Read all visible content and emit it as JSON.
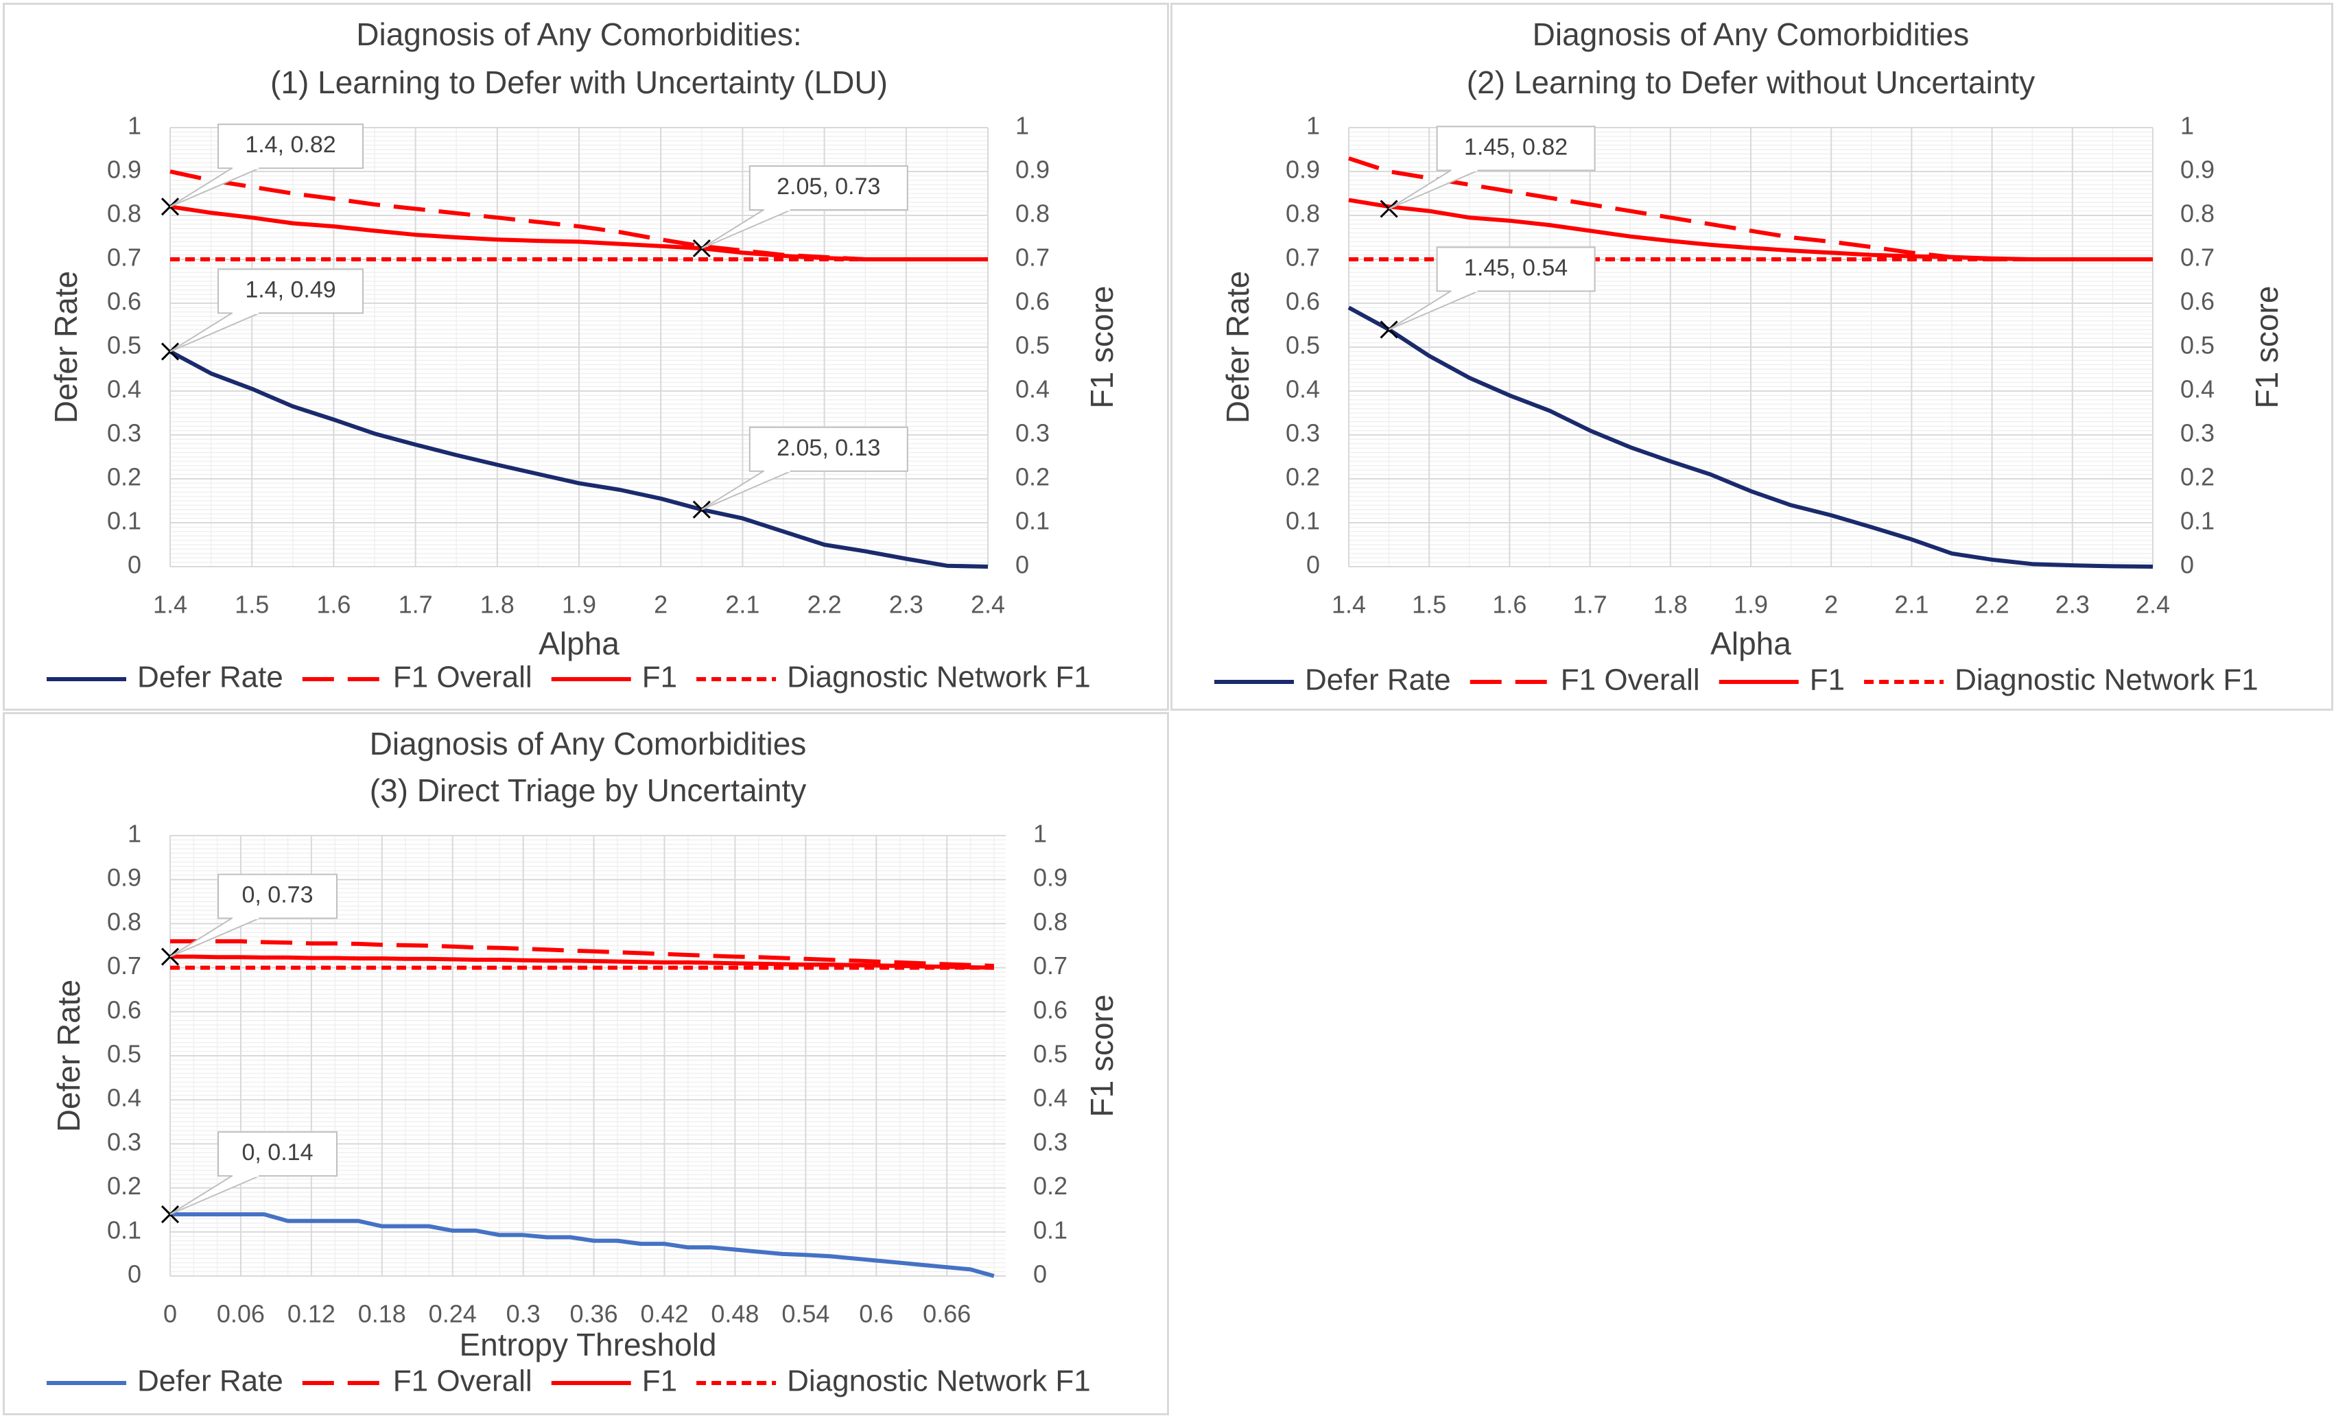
{
  "chart_data": [
    {
      "type": "line",
      "title": [
        "Diagnosis of Any Comorbidities:",
        "(1) Learning to Defer with Uncertainty (LDU)"
      ],
      "xlabel": "Alpha",
      "ylabel": "Defer Rate",
      "ylabel2": "F1 score",
      "xlim": [
        1.4,
        2.4
      ],
      "ylim": [
        0,
        1
      ],
      "y2lim": [
        0,
        1
      ],
      "x_ticks": [
        "1.4",
        "1.5",
        "1.6",
        "1.7",
        "1.8",
        "1.9",
        "2",
        "2.1",
        "2.2",
        "2.3",
        "2.4"
      ],
      "y_ticks": [
        "0",
        "0.1",
        "0.2",
        "0.3",
        "0.4",
        "0.5",
        "0.6",
        "0.7",
        "0.8",
        "0.9",
        "1"
      ],
      "grid": true,
      "legend_position": "bottom",
      "x": [
        1.4,
        1.45,
        1.5,
        1.55,
        1.6,
        1.65,
        1.7,
        1.75,
        1.8,
        1.85,
        1.9,
        1.95,
        2.0,
        2.05,
        2.1,
        2.15,
        2.2,
        2.25,
        2.3,
        2.35,
        2.4
      ],
      "series": [
        {
          "name": "Defer Rate",
          "style": "solid",
          "color": "#1a2a6c",
          "values": [
            0.49,
            0.44,
            0.405,
            0.365,
            0.335,
            0.303,
            0.278,
            0.254,
            0.232,
            0.211,
            0.19,
            0.175,
            0.155,
            0.13,
            0.11,
            0.08,
            0.05,
            0.035,
            0.018,
            0.002,
            0.0
          ]
        },
        {
          "name": "F1 Overall",
          "style": "long-dash",
          "color": "#ff0000",
          "values": [
            0.9,
            0.88,
            0.865,
            0.85,
            0.838,
            0.825,
            0.815,
            0.805,
            0.795,
            0.785,
            0.775,
            0.762,
            0.745,
            0.73,
            0.72,
            0.71,
            0.705,
            0.7,
            0.7,
            0.7,
            0.7
          ]
        },
        {
          "name": "F1",
          "style": "solid",
          "color": "#ff0000",
          "values": [
            0.82,
            0.806,
            0.795,
            0.782,
            0.775,
            0.765,
            0.756,
            0.75,
            0.745,
            0.742,
            0.74,
            0.735,
            0.73,
            0.725,
            0.715,
            0.708,
            0.703,
            0.7,
            0.7,
            0.7,
            0.7
          ]
        },
        {
          "name": "Diagnostic Network F1",
          "style": "short-dash",
          "color": "#ff0000",
          "values": [
            0.7,
            0.7,
            0.7,
            0.7,
            0.7,
            0.7,
            0.7,
            0.7,
            0.7,
            0.7,
            0.7,
            0.7,
            0.7,
            0.7,
            0.7,
            0.7,
            0.7,
            0.7,
            0.7,
            0.7,
            0.7
          ]
        }
      ],
      "annotations": [
        {
          "text": "1.4, 0.82",
          "x": 1.4,
          "y": 0.82
        },
        {
          "text": "2.05, 0.73",
          "x": 2.05,
          "y": 0.725
        },
        {
          "text": "1.4, 0.49",
          "x": 1.4,
          "y": 0.49
        },
        {
          "text": "2.05, 0.13",
          "x": 2.05,
          "y": 0.13
        }
      ]
    },
    {
      "type": "line",
      "title": [
        "Diagnosis of Any Comorbidities",
        "(2) Learning to Defer without Uncertainty"
      ],
      "xlabel": "Alpha",
      "ylabel": "Defer Rate",
      "ylabel2": "F1 score",
      "xlim": [
        1.4,
        2.4
      ],
      "ylim": [
        0,
        1
      ],
      "y2lim": [
        0,
        1
      ],
      "x_ticks": [
        "1.4",
        "1.5",
        "1.6",
        "1.7",
        "1.8",
        "1.9",
        "2",
        "2.1",
        "2.2",
        "2.3",
        "2.4"
      ],
      "y_ticks": [
        "0",
        "0.1",
        "0.2",
        "0.3",
        "0.4",
        "0.5",
        "0.6",
        "0.7",
        "0.8",
        "0.9",
        "1"
      ],
      "grid": true,
      "legend_position": "bottom",
      "x": [
        1.4,
        1.45,
        1.5,
        1.55,
        1.6,
        1.65,
        1.7,
        1.75,
        1.8,
        1.85,
        1.9,
        1.95,
        2.0,
        2.05,
        2.1,
        2.15,
        2.2,
        2.25,
        2.3,
        2.35,
        2.4
      ],
      "series": [
        {
          "name": "Defer Rate",
          "style": "solid",
          "color": "#1a2a6c",
          "values": [
            0.59,
            0.54,
            0.48,
            0.43,
            0.39,
            0.355,
            0.31,
            0.272,
            0.24,
            0.21,
            0.172,
            0.14,
            0.117,
            0.09,
            0.062,
            0.03,
            0.016,
            0.006,
            0.003,
            0.001,
            0.0
          ]
        },
        {
          "name": "F1 Overall",
          "style": "long-dash",
          "color": "#ff0000",
          "values": [
            0.93,
            0.9,
            0.885,
            0.87,
            0.855,
            0.84,
            0.825,
            0.81,
            0.795,
            0.78,
            0.765,
            0.75,
            0.74,
            0.728,
            0.715,
            0.705,
            0.7,
            0.7,
            0.7,
            0.7,
            0.7
          ]
        },
        {
          "name": "F1",
          "style": "solid",
          "color": "#ff0000",
          "values": [
            0.835,
            0.82,
            0.81,
            0.795,
            0.788,
            0.778,
            0.765,
            0.752,
            0.742,
            0.733,
            0.726,
            0.72,
            0.715,
            0.71,
            0.707,
            0.705,
            0.702,
            0.7,
            0.7,
            0.7,
            0.7
          ]
        },
        {
          "name": "Diagnostic Network F1",
          "style": "short-dash",
          "color": "#ff0000",
          "values": [
            0.7,
            0.7,
            0.7,
            0.7,
            0.7,
            0.7,
            0.7,
            0.7,
            0.7,
            0.7,
            0.7,
            0.7,
            0.7,
            0.7,
            0.7,
            0.7,
            0.7,
            0.7,
            0.7,
            0.7,
            0.7
          ]
        }
      ],
      "annotations": [
        {
          "text": "1.45, 0.82",
          "x": 1.45,
          "y": 0.815
        },
        {
          "text": "1.45, 0.54",
          "x": 1.45,
          "y": 0.54
        }
      ]
    },
    {
      "type": "line",
      "title": [
        "Diagnosis of Any Comorbidities",
        "(3) Direct Triage by Uncertainty"
      ],
      "xlabel": "Entropy Threshold",
      "ylabel": "Defer Rate",
      "ylabel2": "F1 score",
      "xlim": [
        0,
        0.71
      ],
      "ylim": [
        0,
        1
      ],
      "y2lim": [
        0,
        1
      ],
      "x_ticks": [
        "0",
        "0.06",
        "0.12",
        "0.18",
        "0.24",
        "0.3",
        "0.36",
        "0.42",
        "0.48",
        "0.54",
        "0.6",
        "0.66"
      ],
      "y_ticks": [
        "0",
        "0.1",
        "0.2",
        "0.3",
        "0.4",
        "0.5",
        "0.6",
        "0.7",
        "0.8",
        "0.9",
        "1"
      ],
      "grid": true,
      "legend_position": "bottom",
      "x": [
        0,
        0.02,
        0.04,
        0.06,
        0.08,
        0.1,
        0.12,
        0.14,
        0.16,
        0.18,
        0.2,
        0.22,
        0.24,
        0.26,
        0.28,
        0.3,
        0.32,
        0.34,
        0.36,
        0.38,
        0.4,
        0.42,
        0.44,
        0.46,
        0.48,
        0.5,
        0.52,
        0.54,
        0.56,
        0.58,
        0.6,
        0.62,
        0.64,
        0.66,
        0.68,
        0.7
      ],
      "series": [
        {
          "name": "Defer Rate",
          "style": "solid",
          "color": "#4472c4",
          "values": [
            0.14,
            0.14,
            0.14,
            0.14,
            0.14,
            0.125,
            0.125,
            0.125,
            0.125,
            0.113,
            0.113,
            0.113,
            0.103,
            0.103,
            0.093,
            0.093,
            0.088,
            0.088,
            0.08,
            0.08,
            0.073,
            0.073,
            0.065,
            0.065,
            0.06,
            0.055,
            0.05,
            0.048,
            0.045,
            0.04,
            0.035,
            0.03,
            0.025,
            0.02,
            0.015,
            0.0
          ]
        },
        {
          "name": "F1 Overall",
          "style": "long-dash",
          "color": "#ff0000",
          "values": [
            0.76,
            0.76,
            0.76,
            0.76,
            0.758,
            0.757,
            0.755,
            0.755,
            0.754,
            0.752,
            0.751,
            0.75,
            0.748,
            0.746,
            0.745,
            0.743,
            0.741,
            0.739,
            0.737,
            0.735,
            0.733,
            0.731,
            0.729,
            0.727,
            0.725,
            0.724,
            0.722,
            0.72,
            0.718,
            0.716,
            0.714,
            0.712,
            0.71,
            0.708,
            0.706,
            0.704
          ]
        },
        {
          "name": "F1",
          "style": "solid",
          "color": "#ff0000",
          "values": [
            0.725,
            0.725,
            0.724,
            0.724,
            0.723,
            0.723,
            0.722,
            0.722,
            0.721,
            0.721,
            0.72,
            0.72,
            0.719,
            0.718,
            0.718,
            0.717,
            0.716,
            0.716,
            0.715,
            0.714,
            0.713,
            0.712,
            0.712,
            0.711,
            0.71,
            0.709,
            0.708,
            0.707,
            0.707,
            0.706,
            0.705,
            0.704,
            0.703,
            0.702,
            0.701,
            0.7
          ]
        },
        {
          "name": "Diagnostic Network F1",
          "style": "short-dash",
          "color": "#ff0000",
          "values": [
            0.7,
            0.7,
            0.7,
            0.7,
            0.7,
            0.7,
            0.7,
            0.7,
            0.7,
            0.7,
            0.7,
            0.7,
            0.7,
            0.7,
            0.7,
            0.7,
            0.7,
            0.7,
            0.7,
            0.7,
            0.7,
            0.7,
            0.7,
            0.7,
            0.7,
            0.7,
            0.7,
            0.7,
            0.7,
            0.7,
            0.7,
            0.7,
            0.7,
            0.7,
            0.7,
            0.7
          ]
        }
      ],
      "annotations": [
        {
          "text": "0, 0.73",
          "x": 0,
          "y": 0.725
        },
        {
          "text": "0, 0.14",
          "x": 0,
          "y": 0.14
        }
      ]
    }
  ]
}
